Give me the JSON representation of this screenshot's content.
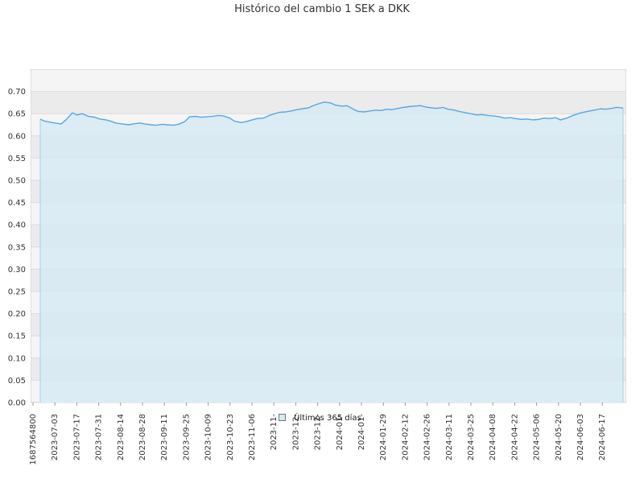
{
  "chart_data": {
    "type": "area",
    "title": "Histórico del cambio 1 SEK a DKK",
    "xlabel": "",
    "ylabel": "",
    "ylim": [
      0,
      0.7
    ],
    "y_ticks": [
      "0.00",
      "0.05",
      "0.10",
      "0.15",
      "0.20",
      "0.25",
      "0.30",
      "0.35",
      "0.40",
      "0.45",
      "0.50",
      "0.55",
      "0.60",
      "0.65",
      "0.70"
    ],
    "x_tick_labels": [
      "1687564800",
      "2023-07-03",
      "2023-07-17",
      "2023-07-31",
      "2023-08-14",
      "2023-08-28",
      "2023-09-11",
      "2023-09-25",
      "2023-10-09",
      "2023-10-23",
      "2023-11-06",
      "2023-11-",
      "2023-12-",
      "2023-12-",
      "2024-01-",
      "2024-01-",
      "2024-01-29",
      "2024-02-12",
      "2024-02-26",
      "2024-03-11",
      "2024-03-25",
      "2024-04-08",
      "2024-04-22",
      "2024-05-06",
      "2024-05-20",
      "2024-06-03",
      "2024-06-17"
    ],
    "grid": true,
    "legend_position": "bottom-center",
    "series": [
      {
        "name": "Últimos 365 días",
        "color": "#5aa6e0",
        "fill": "#d6eaf3",
        "x": [
          "2023-06-24",
          "2023-06-26",
          "2023-06-30",
          "2023-07-03",
          "2023-07-07",
          "2023-07-10",
          "2023-07-14",
          "2023-07-17",
          "2023-07-20",
          "2023-07-24",
          "2023-07-28",
          "2023-07-31",
          "2023-08-04",
          "2023-08-07",
          "2023-08-10",
          "2023-08-14",
          "2023-08-18",
          "2023-08-21",
          "2023-08-25",
          "2023-08-28",
          "2023-09-01",
          "2023-09-04",
          "2023-09-08",
          "2023-09-11",
          "2023-09-15",
          "2023-09-18",
          "2023-09-22",
          "2023-09-25",
          "2023-09-29",
          "2023-10-02",
          "2023-10-06",
          "2023-10-09",
          "2023-10-13",
          "2023-10-16",
          "2023-10-20",
          "2023-10-23",
          "2023-10-27",
          "2023-10-30",
          "2023-11-03",
          "2023-11-06",
          "2023-11-10",
          "2023-11-13",
          "2023-11-17",
          "2023-11-20",
          "2023-11-24",
          "2023-11-27",
          "2023-12-01",
          "2023-12-04",
          "2023-12-08",
          "2023-12-11",
          "2023-12-15",
          "2023-12-18",
          "2023-12-22",
          "2023-12-25",
          "2023-12-29",
          "2024-01-01",
          "2024-01-05",
          "2024-01-08",
          "2024-01-12",
          "2024-01-15",
          "2024-01-19",
          "2024-01-22",
          "2024-01-26",
          "2024-01-29",
          "2024-02-02",
          "2024-02-05",
          "2024-02-09",
          "2024-02-12",
          "2024-02-16",
          "2024-02-19",
          "2024-02-23",
          "2024-02-26",
          "2024-03-01",
          "2024-03-04",
          "2024-03-08",
          "2024-03-11",
          "2024-03-15",
          "2024-03-18",
          "2024-03-22",
          "2024-03-25",
          "2024-03-29",
          "2024-04-01",
          "2024-04-05",
          "2024-04-08",
          "2024-04-12",
          "2024-04-15",
          "2024-04-19",
          "2024-04-22",
          "2024-04-26",
          "2024-04-29",
          "2024-05-03",
          "2024-05-06",
          "2024-05-10",
          "2024-05-13",
          "2024-05-17",
          "2024-05-20",
          "2024-05-24",
          "2024-05-27",
          "2024-05-31",
          "2024-06-03",
          "2024-06-07",
          "2024-06-10",
          "2024-06-14",
          "2024-06-17",
          "2024-06-21"
        ],
        "values": [
          0.638,
          0.634,
          0.631,
          0.629,
          0.627,
          0.636,
          0.652,
          0.647,
          0.65,
          0.644,
          0.642,
          0.638,
          0.636,
          0.633,
          0.629,
          0.627,
          0.625,
          0.627,
          0.629,
          0.627,
          0.625,
          0.624,
          0.626,
          0.625,
          0.624,
          0.626,
          0.632,
          0.643,
          0.644,
          0.642,
          0.643,
          0.644,
          0.646,
          0.645,
          0.64,
          0.633,
          0.63,
          0.632,
          0.636,
          0.639,
          0.64,
          0.645,
          0.65,
          0.653,
          0.654,
          0.656,
          0.659,
          0.661,
          0.663,
          0.668,
          0.673,
          0.676,
          0.674,
          0.669,
          0.667,
          0.668,
          0.66,
          0.655,
          0.654,
          0.656,
          0.658,
          0.657,
          0.66,
          0.659,
          0.662,
          0.664,
          0.666,
          0.667,
          0.668,
          0.665,
          0.663,
          0.662,
          0.664,
          0.66,
          0.658,
          0.655,
          0.652,
          0.65,
          0.647,
          0.648,
          0.646,
          0.645,
          0.643,
          0.64,
          0.641,
          0.639,
          0.637,
          0.638,
          0.636,
          0.637,
          0.64,
          0.639,
          0.641,
          0.636,
          0.64,
          0.645,
          0.65,
          0.653,
          0.656,
          0.658,
          0.661,
          0.66,
          0.662,
          0.664,
          0.663
        ]
      }
    ]
  }
}
